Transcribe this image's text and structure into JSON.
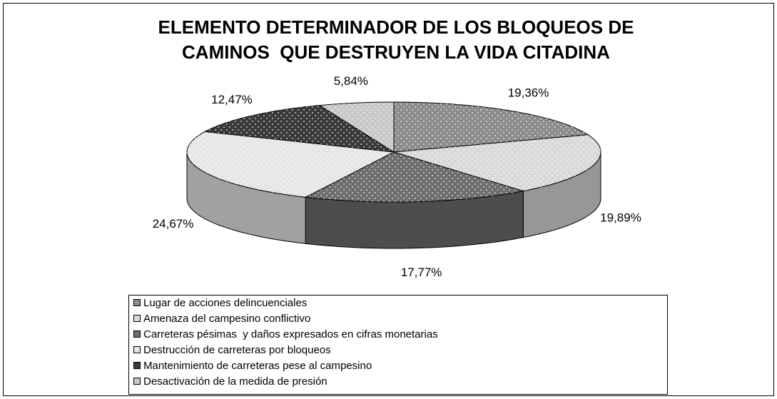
{
  "chart_data": {
    "type": "pie3d",
    "title": [
      "ELEMENTO DETERMINADOR DE LOS BLOQUEOS DE",
      "CAMINOS  QUE DESTRUYEN LA VIDA CITADINA"
    ],
    "categories": [
      "Lugar de acciones delincuenciales",
      "Amenaza del campesino conflictivo",
      "Carreteras pésimas  y daños expresados en cifras monetarias",
      "Destrucción de carreteras por bloqueos",
      "Mantenimiento de carreteras pese al campesino",
      "Desactivación de la medida de presión"
    ],
    "values": [
      19.36,
      19.89,
      17.77,
      24.67,
      12.47,
      5.84
    ],
    "value_labels": [
      "19,36%",
      "19,89%",
      "17,77%",
      "24,67%",
      "12,47%",
      "5,84%"
    ],
    "colors": [
      "#8c8c8c",
      "#d9d9d9",
      "#6e6e6e",
      "#e6e6e6",
      "#3a3a3a",
      "#c8c8c8"
    ],
    "legend": "bottom"
  }
}
